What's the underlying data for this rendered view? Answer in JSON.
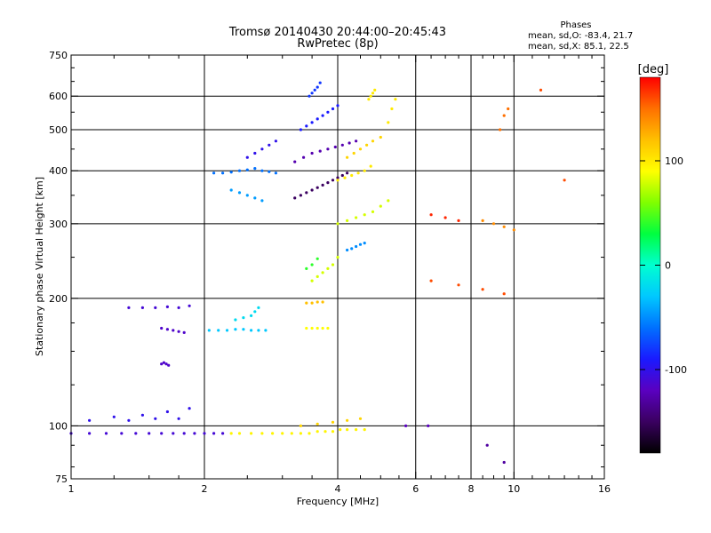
{
  "chart_data": {
    "type": "scatter",
    "title": "Tromsø 20140430 20:44:00–20:45:43",
    "subtitle": "RwPretec (8p)",
    "xlabel": "Frequency [MHz]",
    "ylabel": "Stationary phase Virtual Height [km]",
    "xscale": "log",
    "yscale": "log",
    "xlim": [
      1,
      16
    ],
    "ylim": [
      75,
      750
    ],
    "xticks": [
      1,
      2,
      4,
      6,
      8,
      10,
      16
    ],
    "xtick_labels": [
      "1",
      "2",
      "4",
      "6",
      "8",
      "10",
      "16"
    ],
    "xminor_ticks": [
      1.25,
      1.5,
      1.75,
      2.5,
      3,
      3.5,
      4.5,
      5,
      5.5,
      6.5,
      7,
      7.5,
      8.5,
      9,
      9.5,
      11,
      12,
      13,
      14,
      15
    ],
    "yticks": [
      75,
      100,
      200,
      300,
      400,
      500,
      600,
      750
    ],
    "ytick_labels": [
      "75",
      "100",
      "200",
      "300",
      "400",
      "500",
      "600",
      "750"
    ],
    "yminor_ticks": [
      80,
      90,
      125,
      150,
      175,
      250,
      350,
      450,
      550,
      650,
      700
    ],
    "grid_x": [
      2,
      4,
      6,
      8,
      10
    ],
    "grid_y": [
      100,
      200,
      300,
      400,
      500,
      600
    ],
    "stats": {
      "header": "Phases",
      "line_o": "mean, sd,O: -83.4, 21.7",
      "line_x": "mean, sd,X:  85.1, 22.5"
    },
    "colorbar": {
      "label": "[deg]",
      "min": -180,
      "max": 180,
      "ticks": [
        100,
        0,
        -100
      ],
      "tick_labels": [
        "100",
        "0",
        "-100"
      ],
      "colors": [
        "#000000",
        "#3a0060",
        "#5a00c0",
        "#1a1aff",
        "#0070ff",
        "#00c8ff",
        "#00ffd0",
        "#00ff40",
        "#80ff00",
        "#ffff00",
        "#ffc000",
        "#ff7000",
        "#ff0000"
      ]
    },
    "series": [
      {
        "x": [
          1.0,
          1.1,
          1.2,
          1.3,
          1.4,
          1.5,
          1.6,
          1.7,
          1.8,
          1.9,
          2.0,
          2.1,
          2.2
        ],
        "y": [
          96,
          96,
          96,
          96,
          96,
          96,
          96,
          96,
          96,
          96,
          96,
          96,
          96
        ],
        "phase": -110
      },
      {
        "x": [
          2.3,
          2.4,
          2.55,
          2.7,
          2.85,
          3.0,
          3.15,
          3.3,
          3.45,
          3.6,
          3.75,
          3.9,
          4.05,
          4.2,
          4.4,
          4.6
        ],
        "y": [
          96,
          96,
          96,
          96,
          96,
          96,
          96,
          96,
          96,
          97,
          97,
          97,
          98,
          98,
          98,
          98
        ],
        "phase": 95
      },
      {
        "x": [
          1.1,
          1.25,
          1.35,
          1.45,
          1.55,
          1.65,
          1.75,
          1.85
        ],
        "y": [
          103,
          105,
          103,
          106,
          104,
          108,
          104,
          110
        ],
        "phase": -100
      },
      {
        "x": [
          1.35,
          1.45,
          1.55,
          1.65,
          1.75,
          1.85
        ],
        "y": [
          190,
          190,
          190,
          191,
          190,
          192
        ],
        "phase": -110
      },
      {
        "x": [
          1.6,
          1.65,
          1.7,
          1.75,
          1.8
        ],
        "y": [
          170,
          169,
          168,
          167,
          166
        ],
        "phase": -115
      },
      {
        "x": [
          1.6,
          1.62,
          1.64,
          1.66
        ],
        "y": [
          140,
          141,
          140,
          139
        ],
        "phase": -115
      },
      {
        "x": [
          2.05,
          2.15,
          2.25,
          2.35,
          2.45,
          2.55,
          2.65,
          2.75
        ],
        "y": [
          168,
          168,
          168,
          169,
          169,
          168,
          168,
          168
        ],
        "phase": -30
      },
      {
        "x": [
          2.35,
          2.45,
          2.55,
          2.6,
          2.65
        ],
        "y": [
          178,
          180,
          182,
          186,
          190
        ],
        "phase": -20
      },
      {
        "x": [
          2.1,
          2.2,
          2.3,
          2.4,
          2.5,
          2.6,
          2.7,
          2.8,
          2.9
        ],
        "y": [
          395,
          395,
          397,
          400,
          402,
          405,
          400,
          398,
          395
        ],
        "phase": -60
      },
      {
        "x": [
          2.5,
          2.6,
          2.7,
          2.8,
          2.9
        ],
        "y": [
          430,
          440,
          450,
          460,
          470
        ],
        "phase": -100
      },
      {
        "x": [
          2.3,
          2.4,
          2.5,
          2.6,
          2.7
        ],
        "y": [
          360,
          355,
          350,
          345,
          340
        ],
        "phase": -45
      },
      {
        "x": [
          3.2,
          3.3,
          3.4,
          3.5,
          3.6,
          3.7,
          3.8,
          3.9,
          4.0,
          4.1,
          4.2
        ],
        "y": [
          345,
          350,
          355,
          360,
          365,
          370,
          375,
          380,
          385,
          390,
          395
        ],
        "phase": -150
      },
      {
        "x": [
          3.2,
          3.35,
          3.5,
          3.65,
          3.8,
          3.95,
          4.1,
          4.25,
          4.4
        ],
        "y": [
          420,
          430,
          440,
          445,
          450,
          455,
          460,
          465,
          470
        ],
        "phase": -125
      },
      {
        "x": [
          3.3,
          3.4,
          3.5,
          3.6,
          3.7,
          3.8,
          3.9,
          4.0
        ],
        "y": [
          500,
          510,
          520,
          530,
          540,
          550,
          560,
          570
        ],
        "phase": -90
      },
      {
        "x": [
          3.45,
          3.5,
          3.55,
          3.6,
          3.65
        ],
        "y": [
          600,
          610,
          620,
          630,
          645
        ],
        "phase": -80
      },
      {
        "x": [
          4.0,
          4.15,
          4.3,
          4.45,
          4.6,
          4.75
        ],
        "y": [
          380,
          385,
          390,
          395,
          400,
          410
        ],
        "phase": 100
      },
      {
        "x": [
          4.2,
          4.35,
          4.5,
          4.65,
          4.8,
          5.0
        ],
        "y": [
          430,
          440,
          450,
          460,
          470,
          480
        ],
        "phase": 110
      },
      {
        "x": [
          4.0,
          4.2,
          4.4,
          4.6,
          4.8,
          5.0,
          5.2
        ],
        "y": [
          300,
          305,
          310,
          315,
          320,
          330,
          340
        ],
        "phase": 80
      },
      {
        "x": [
          3.5,
          3.6,
          3.7,
          3.8,
          3.9,
          4.0
        ],
        "y": [
          220,
          225,
          230,
          235,
          240,
          250
        ],
        "phase": 80
      },
      {
        "x": [
          3.4,
          3.5,
          3.6
        ],
        "y": [
          235,
          240,
          248
        ],
        "phase": 40
      },
      {
        "x": [
          4.2,
          4.3,
          4.4,
          4.5,
          4.6
        ],
        "y": [
          260,
          262,
          265,
          268,
          270
        ],
        "phase": -50
      },
      {
        "x": [
          3.4,
          3.5,
          3.6,
          3.7,
          3.8
        ],
        "y": [
          170,
          170,
          170,
          170,
          170
        ],
        "phase": 90
      },
      {
        "x": [
          3.4,
          3.5,
          3.6,
          3.7
        ],
        "y": [
          195,
          195,
          196,
          196
        ],
        "phase": 120
      },
      {
        "x": [
          3.3,
          3.6,
          3.9,
          4.2,
          4.5
        ],
        "y": [
          100,
          101,
          102,
          103,
          104
        ],
        "phase": 110
      },
      {
        "x": [
          4.7,
          4.75,
          4.8,
          4.85
        ],
        "y": [
          590,
          600,
          610,
          620
        ],
        "phase": 100
      },
      {
        "x": [
          5.2,
          5.3,
          5.4
        ],
        "y": [
          520,
          560,
          590
        ],
        "phase": 100
      },
      {
        "x": [
          6.5,
          7.0,
          7.5
        ],
        "y": [
          315,
          310,
          305
        ],
        "phase": 170
      },
      {
        "x": [
          8.5,
          9.0,
          9.5,
          10.0
        ],
        "y": [
          305,
          300,
          295,
          290
        ],
        "phase": 140
      },
      {
        "x": [
          6.5,
          7.5,
          8.5,
          9.5
        ],
        "y": [
          220,
          215,
          210,
          205
        ],
        "phase": 160
      },
      {
        "x": [
          9.3,
          9.5,
          9.7
        ],
        "y": [
          500,
          540,
          560
        ],
        "phase": 150
      },
      {
        "x": [
          11.5,
          13.0
        ],
        "y": [
          620,
          380
        ],
        "phase": 160
      },
      {
        "x": [
          5.7,
          6.4
        ],
        "y": [
          100,
          100
        ],
        "phase": -120
      },
      {
        "x": [
          8.7,
          9.5
        ],
        "y": [
          90,
          82
        ],
        "phase": -130
      }
    ]
  }
}
